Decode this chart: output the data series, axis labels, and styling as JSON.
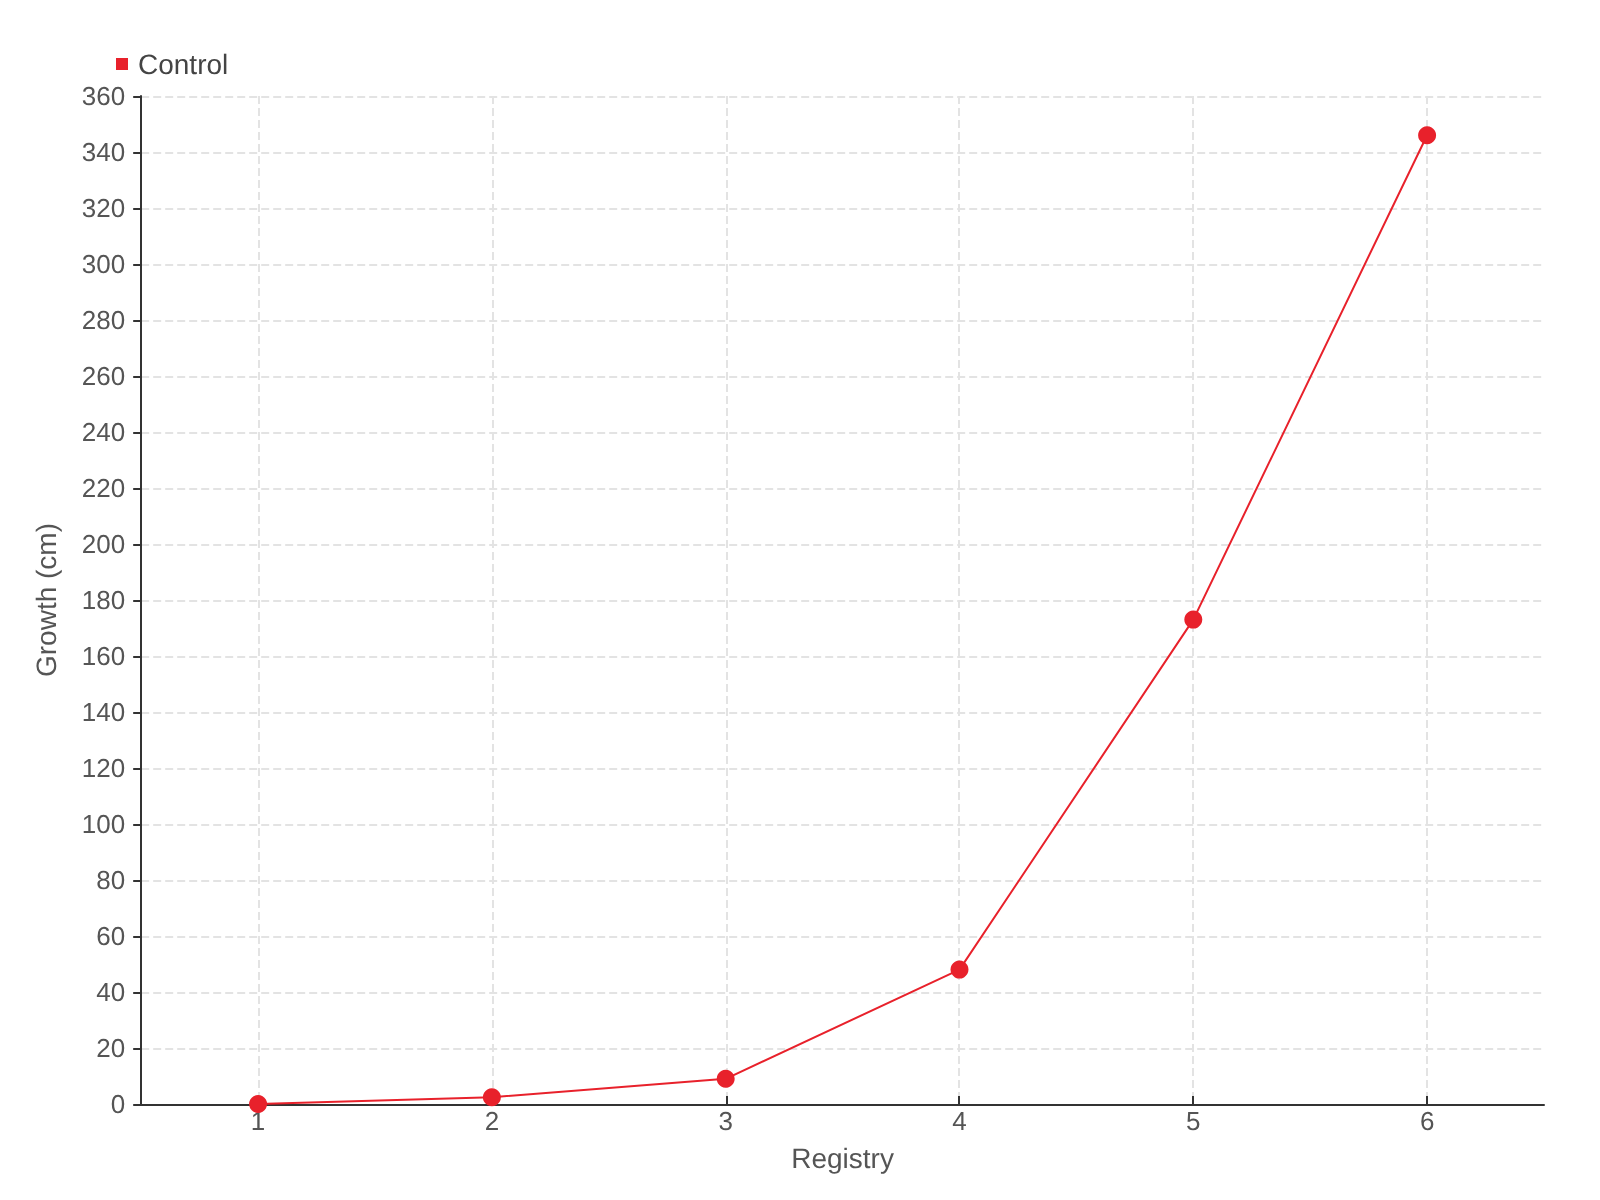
{
  "chart_data": {
    "type": "line",
    "xlabel": "Registry",
    "ylabel": "Growth (cm)",
    "x": [
      1,
      2,
      3,
      4,
      5,
      6
    ],
    "series": [
      {
        "name": "Control",
        "color": "#e8212b",
        "values": [
          0,
          2.4,
          9,
          48,
          173,
          346
        ]
      }
    ],
    "xlim": [
      0.5,
      6.5
    ],
    "xticks": [
      1,
      2,
      3,
      4,
      5,
      6
    ],
    "ylim": [
      0,
      360
    ],
    "yticks": [
      0,
      20,
      40,
      60,
      80,
      100,
      120,
      140,
      160,
      180,
      200,
      220,
      240,
      260,
      280,
      300,
      320,
      340,
      360
    ],
    "grid": true,
    "legend": "top left",
    "marker": "circle",
    "line_style": "solid"
  }
}
